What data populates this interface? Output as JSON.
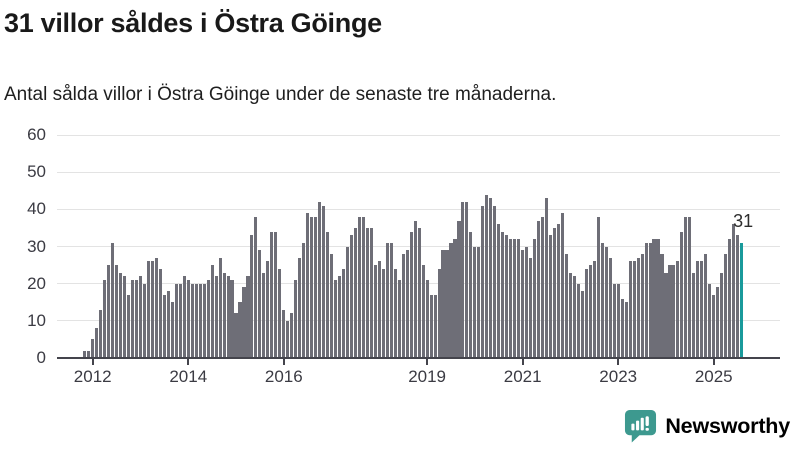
{
  "header": {
    "note": "header text is bound from chart_data title/subtitle"
  },
  "chart_data": {
    "type": "bar",
    "title": "31 villor såldes i Östra Göinge",
    "subtitle": "Antal sålda villor i Östra Göinge under de senaste tre månaderna.",
    "xlabel": "",
    "ylabel": "",
    "ylim": [
      0,
      60
    ],
    "grid": true,
    "x_start_month": "2011-11",
    "x_end_month": "2025-08",
    "values": [
      2,
      2,
      5,
      8,
      13,
      21,
      25,
      31,
      25,
      23,
      22,
      17,
      21,
      21,
      22,
      20,
      26,
      26,
      27,
      24,
      17,
      18,
      15,
      20,
      20,
      22,
      21,
      20,
      20,
      20,
      20,
      21,
      25,
      22,
      27,
      23,
      22,
      21,
      12,
      15,
      19,
      22,
      33,
      38,
      29,
      23,
      26,
      34,
      34,
      24,
      13,
      10,
      12,
      21,
      27,
      31,
      39,
      38,
      38,
      42,
      41,
      34,
      28,
      21,
      22,
      24,
      30,
      33,
      35,
      38,
      38,
      35,
      35,
      25,
      26,
      24,
      31,
      31,
      24,
      21,
      28,
      29,
      34,
      37,
      35,
      25,
      21,
      17,
      17,
      24,
      29,
      29,
      31,
      32,
      37,
      42,
      42,
      34,
      30,
      30,
      41,
      44,
      43,
      41,
      36,
      34,
      33,
      32,
      32,
      32,
      29,
      30,
      27,
      32,
      37,
      38,
      43,
      33,
      35,
      36,
      39,
      28,
      23,
      22,
      20,
      18,
      24,
      25,
      26,
      38,
      31,
      30,
      27,
      20,
      20,
      16,
      15,
      26,
      26,
      27,
      28,
      31,
      31,
      32,
      32,
      28,
      23,
      25,
      25,
      26,
      34,
      38,
      38,
      23,
      26,
      26,
      28,
      20,
      17,
      19,
      23,
      28,
      32,
      36,
      33,
      31
    ],
    "y_tick_labels": [
      "0",
      "10",
      "20",
      "30",
      "40",
      "50",
      "60"
    ],
    "x_ticks": [
      {
        "label": "2012",
        "month_index": 2
      },
      {
        "label": "2014",
        "month_index": 26
      },
      {
        "label": "2016",
        "month_index": 50
      },
      {
        "label": "2019",
        "month_index": 86
      },
      {
        "label": "2021",
        "month_index": 110
      },
      {
        "label": "2023",
        "month_index": 134
      },
      {
        "label": "2025",
        "month_index": 158
      }
    ],
    "annotation": "31",
    "highlight_last_bar": true,
    "bar_color": "#6e6e77",
    "highlight_color": "#199a9b",
    "legend": "none"
  },
  "footer": {
    "brand": "Newsworthy",
    "logo_color": "#3d998f"
  }
}
